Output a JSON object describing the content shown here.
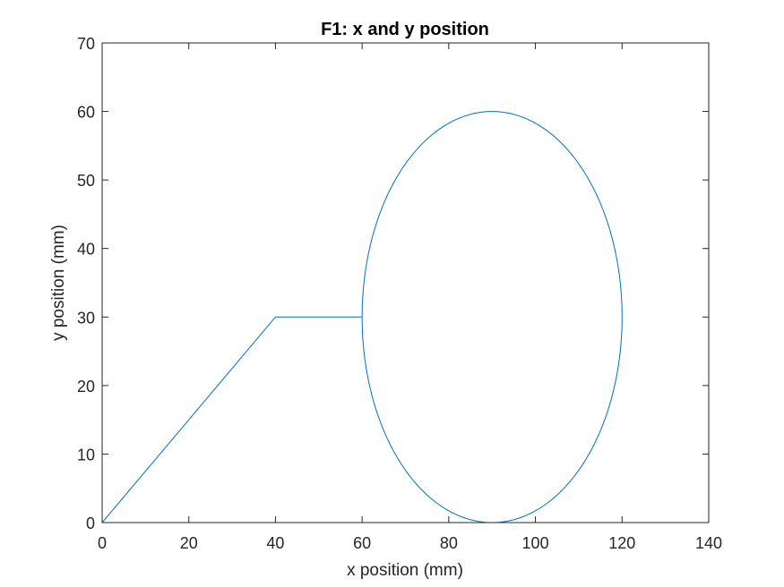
{
  "chart_data": {
    "type": "line",
    "title": "F1: x and y position",
    "xlabel": "x position (mm)",
    "ylabel": "y position (mm)",
    "xlim": [
      0,
      140
    ],
    "ylim": [
      0,
      70
    ],
    "xticks": [
      0,
      20,
      40,
      60,
      80,
      100,
      120,
      140
    ],
    "yticks": [
      0,
      10,
      20,
      30,
      40,
      50,
      60,
      70
    ],
    "xtick_labels": [
      "0",
      "20",
      "40",
      "60",
      "80",
      "100",
      "120",
      "140"
    ],
    "ytick_labels": [
      "0",
      "10",
      "20",
      "30",
      "40",
      "50",
      "60",
      "70"
    ],
    "grid": false,
    "line_color": "#0072BD",
    "series": [
      {
        "path": {
          "polyline": [
            [
              0,
              0
            ],
            [
              40,
              30
            ],
            [
              60,
              30
            ]
          ],
          "ellipse": {
            "center": [
              90,
              30
            ],
            "radius_x": 30,
            "radius_y": 30,
            "start_angle_deg": 180
          }
        }
      }
    ]
  }
}
